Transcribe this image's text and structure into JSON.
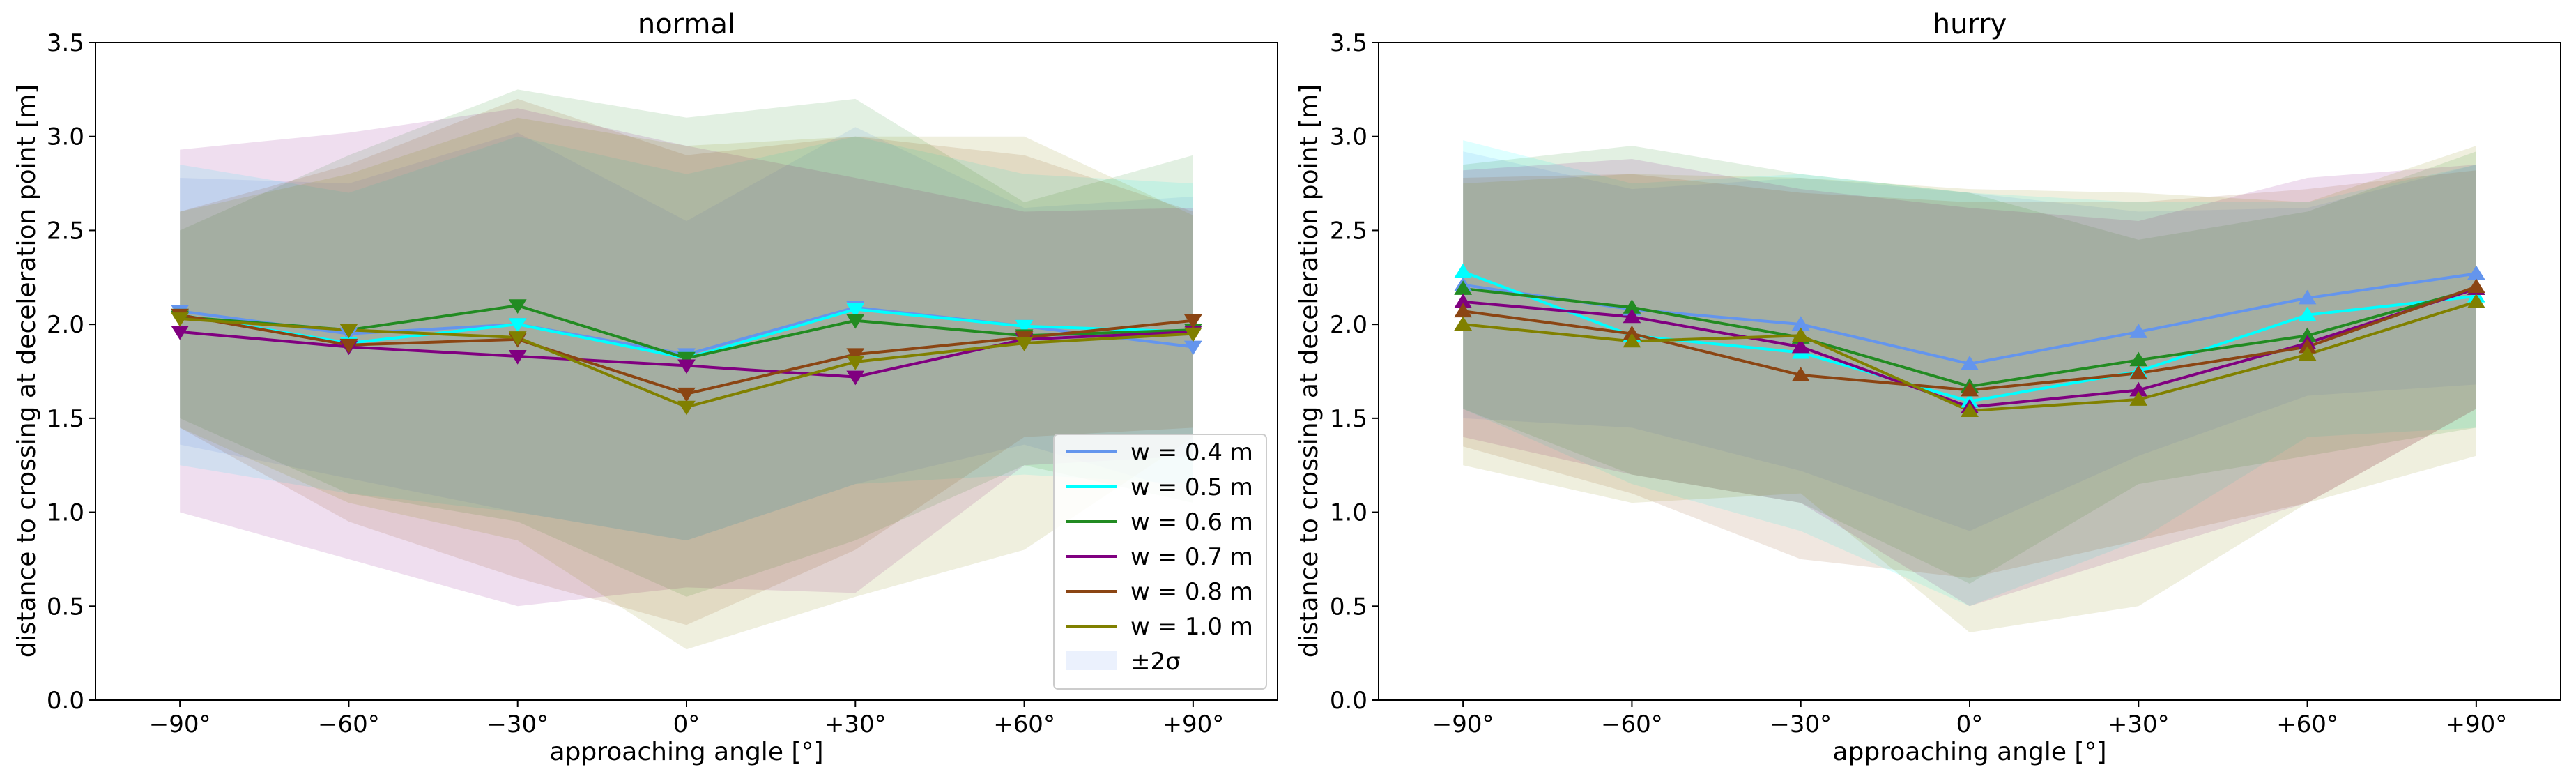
{
  "chart_data": [
    {
      "type": "line",
      "title": "normal",
      "xlabel": "approaching angle [°]",
      "ylabel": "distance to crossing at deceleration point [m]",
      "categories": [
        "−90°",
        "−60°",
        "−30°",
        "0°",
        "+30°",
        "+60°",
        "+90°"
      ],
      "x": [
        -90,
        -60,
        -30,
        0,
        30,
        60,
        90
      ],
      "xlim": [
        -105,
        105
      ],
      "ylim": [
        0.0,
        3.5
      ],
      "yticks": [
        "0.0",
        "0.5",
        "1.0",
        "1.5",
        "2.0",
        "2.5",
        "3.0",
        "3.5"
      ],
      "marker": "triangle-down",
      "legend": {
        "position": "lower-right",
        "entries": [
          "w = 0.4 m",
          "w = 0.5 m",
          "w = 0.6 m",
          "w = 0.7 m",
          "w = 0.8 m",
          "w = 1.0 m",
          "±2σ"
        ]
      },
      "series": [
        {
          "name": "w = 0.4 m",
          "color": "#6495ED",
          "values": [
            2.07,
            1.95,
            2.0,
            1.84,
            2.09,
            1.99,
            1.88
          ],
          "band_upper": [
            2.78,
            2.75,
            3.02,
            2.55,
            3.05,
            2.62,
            2.68
          ],
          "band_lower": [
            1.36,
            1.18,
            1.0,
            0.85,
            1.15,
            1.36,
            1.1
          ]
        },
        {
          "name": "w = 0.5 m",
          "color": "#00FFFF",
          "values": [
            2.05,
            1.9,
            2.0,
            1.82,
            2.08,
            1.99,
            1.96
          ],
          "band_upper": [
            2.85,
            2.7,
            3.0,
            2.8,
            3.0,
            2.8,
            2.75
          ],
          "band_lower": [
            1.25,
            1.1,
            1.0,
            0.85,
            1.15,
            1.2,
            1.15
          ]
        },
        {
          "name": "w = 0.6 m",
          "color": "#228B22",
          "values": [
            2.04,
            1.97,
            2.1,
            1.82,
            2.02,
            1.94,
            1.97
          ],
          "band_upper": [
            2.5,
            2.9,
            3.25,
            3.1,
            3.2,
            2.65,
            2.9
          ],
          "band_lower": [
            1.5,
            1.1,
            0.95,
            0.55,
            0.85,
            1.25,
            1.05
          ]
        },
        {
          "name": "w = 0.7 m",
          "color": "#800080",
          "values": [
            1.96,
            1.88,
            1.83,
            1.78,
            1.72,
            1.92,
            1.96
          ],
          "band_upper": [
            2.93,
            3.02,
            3.15,
            2.95,
            2.78,
            2.6,
            2.62
          ],
          "band_lower": [
            1.0,
            0.75,
            0.5,
            0.6,
            0.57,
            1.25,
            1.3
          ]
        },
        {
          "name": "w = 0.8 m",
          "color": "#8B4513",
          "values": [
            2.05,
            1.89,
            1.92,
            1.63,
            1.84,
            1.93,
            2.02
          ],
          "band_upper": [
            2.6,
            2.85,
            3.2,
            2.9,
            3.0,
            2.9,
            2.6
          ],
          "band_lower": [
            1.45,
            0.95,
            0.65,
            0.4,
            0.8,
            1.4,
            1.45
          ]
        },
        {
          "name": "w = 1.0 m",
          "color": "#808000",
          "values": [
            2.03,
            1.97,
            1.93,
            1.56,
            1.8,
            1.9,
            1.95
          ],
          "band_upper": [
            2.6,
            2.8,
            3.1,
            2.95,
            3.0,
            3.0,
            2.58
          ],
          "band_lower": [
            1.45,
            1.05,
            0.85,
            0.27,
            0.55,
            0.8,
            1.4
          ]
        }
      ]
    },
    {
      "type": "line",
      "title": "hurry",
      "xlabel": "approaching angle [°]",
      "ylabel": "distance to crossing at deceleration point [m]",
      "categories": [
        "−90°",
        "−60°",
        "−30°",
        "0°",
        "+30°",
        "+60°",
        "+90°"
      ],
      "x": [
        -90,
        -60,
        -30,
        0,
        30,
        60,
        90
      ],
      "xlim": [
        -105,
        105
      ],
      "ylim": [
        0.0,
        3.5
      ],
      "yticks": [
        "0.0",
        "0.5",
        "1.0",
        "1.5",
        "2.0",
        "2.5",
        "3.0",
        "3.5"
      ],
      "marker": "triangle-up",
      "series": [
        {
          "name": "w = 0.4 m",
          "color": "#6495ED",
          "values": [
            2.21,
            2.08,
            2.0,
            1.79,
            1.96,
            2.14,
            2.27
          ],
          "band_upper": [
            2.92,
            2.72,
            2.78,
            2.7,
            2.6,
            2.62,
            2.85
          ],
          "band_lower": [
            1.5,
            1.45,
            1.22,
            0.9,
            1.3,
            1.62,
            1.68
          ]
        },
        {
          "name": "w = 0.5 m",
          "color": "#00FFFF",
          "values": [
            2.28,
            1.94,
            1.85,
            1.59,
            1.75,
            2.05,
            2.15
          ],
          "band_upper": [
            2.98,
            2.75,
            2.8,
            2.7,
            2.65,
            2.65,
            2.85
          ],
          "band_lower": [
            1.55,
            1.15,
            0.9,
            0.5,
            0.85,
            1.4,
            1.45
          ]
        },
        {
          "name": "w = 0.6 m",
          "color": "#228B22",
          "values": [
            2.19,
            2.09,
            1.93,
            1.67,
            1.81,
            1.94,
            2.19
          ],
          "band_upper": [
            2.85,
            2.95,
            2.8,
            2.7,
            2.45,
            2.6,
            2.92
          ],
          "band_lower": [
            1.55,
            1.2,
            1.05,
            0.62,
            1.15,
            1.3,
            1.45
          ]
        },
        {
          "name": "w = 0.7 m",
          "color": "#800080",
          "values": [
            2.12,
            2.04,
            1.88,
            1.56,
            1.65,
            1.9,
            2.19
          ],
          "band_upper": [
            2.82,
            2.88,
            2.72,
            2.62,
            2.55,
            2.78,
            2.85
          ],
          "band_lower": [
            1.4,
            1.2,
            1.05,
            0.5,
            0.78,
            1.05,
            1.55
          ]
        },
        {
          "name": "w = 0.8 m",
          "color": "#8B4513",
          "values": [
            2.07,
            1.95,
            1.73,
            1.65,
            1.74,
            1.88,
            2.2
          ],
          "band_upper": [
            2.78,
            2.8,
            2.7,
            2.65,
            2.65,
            2.72,
            2.82
          ],
          "band_lower": [
            1.35,
            1.1,
            0.75,
            0.65,
            0.85,
            1.05,
            1.55
          ]
        },
        {
          "name": "w = 1.0 m",
          "color": "#808000",
          "values": [
            2.0,
            1.91,
            1.94,
            1.54,
            1.6,
            1.84,
            2.12
          ],
          "band_upper": [
            2.75,
            2.8,
            2.78,
            2.72,
            2.7,
            2.65,
            2.95
          ],
          "band_lower": [
            1.25,
            1.05,
            1.1,
            0.36,
            0.5,
            1.05,
            1.3
          ]
        }
      ]
    }
  ]
}
